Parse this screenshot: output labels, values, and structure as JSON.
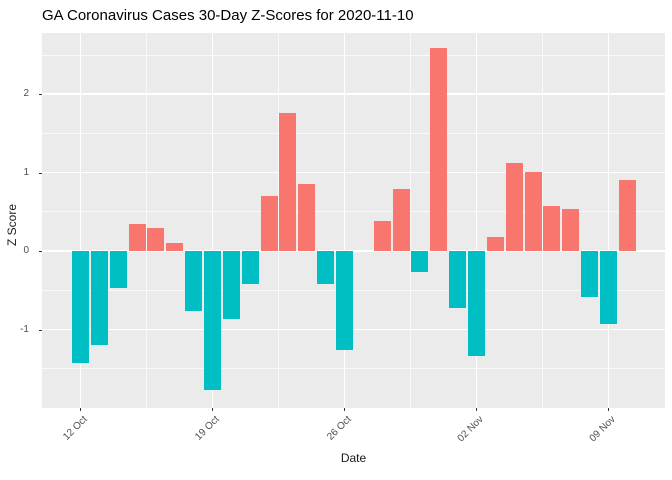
{
  "title": "GA Coronavirus Cases 30-Day Z-Scores for 2020-11-10",
  "chart_data": {
    "type": "bar",
    "title": "GA Coronavirus Cases 30-Day Z-Scores for 2020-11-10",
    "xlabel": "Date",
    "ylabel": "Z Score",
    "categories": [
      "2020-10-12",
      "2020-10-13",
      "2020-10-14",
      "2020-10-15",
      "2020-10-16",
      "2020-10-17",
      "2020-10-18",
      "2020-10-19",
      "2020-10-20",
      "2020-10-21",
      "2020-10-22",
      "2020-10-23",
      "2020-10-24",
      "2020-10-25",
      "2020-10-26",
      "2020-10-27",
      "2020-10-28",
      "2020-10-29",
      "2020-10-30",
      "2020-10-31",
      "2020-11-01",
      "2020-11-02",
      "2020-11-03",
      "2020-11-04",
      "2020-11-05",
      "2020-11-06",
      "2020-11-07",
      "2020-11-08",
      "2020-11-09",
      "2020-11-10"
    ],
    "values": [
      -1.43,
      -1.2,
      -0.47,
      0.35,
      0.29,
      0.1,
      -0.76,
      -1.77,
      -0.87,
      -0.42,
      0.7,
      1.76,
      0.85,
      -0.42,
      -1.26,
      0.0,
      0.39,
      0.79,
      -0.27,
      2.59,
      -0.73,
      -1.34,
      0.18,
      1.12,
      1.01,
      0.57,
      0.54,
      -0.59,
      -0.93,
      0.9
    ],
    "x_ticks": [
      {
        "label": "12 Oct",
        "day": 0
      },
      {
        "label": "19 Oct",
        "day": 7
      },
      {
        "label": "26 Oct",
        "day": 14
      },
      {
        "label": "02 Nov",
        "day": 21
      },
      {
        "label": "09 Nov",
        "day": 28
      }
    ],
    "x_minor_days": [
      3.5,
      10.5,
      17.5,
      24.5
    ],
    "y_ticks": [
      {
        "label": "-1",
        "value": -1
      },
      {
        "label": "0",
        "value": 0
      },
      {
        "label": "1",
        "value": 1
      },
      {
        "label": "2",
        "value": 2
      }
    ],
    "y_minor": [
      -1.5,
      -0.5,
      0.5,
      1.5,
      2.5
    ],
    "xlim_days": [
      -2.04,
      31.0
    ],
    "ylim": [
      -2.0,
      2.78
    ],
    "grid": true,
    "legend_position": "none",
    "colors": {
      "positive_bar": "#F8766D",
      "negative_bar": "#00BFC4",
      "panel_background": "#EBEBEB",
      "grid_major": "#FFFFFF",
      "grid_minor": "#FFFFFF",
      "tick_text": "#4d4d4d",
      "axis_title_text": "#1a1a1a",
      "title_text": "#000000",
      "figure_background": "#FFFFFF"
    }
  }
}
